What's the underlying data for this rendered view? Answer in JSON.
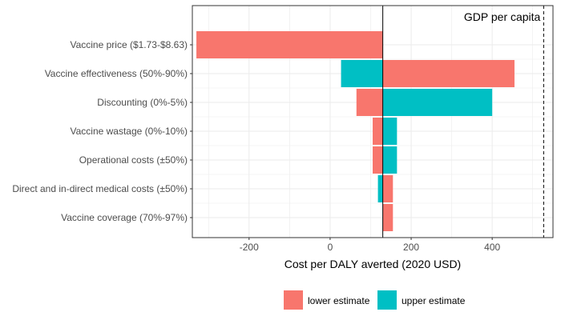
{
  "chart_data": {
    "type": "bar",
    "orientation": "horizontal",
    "xlabel": "Cost per DALY averted (2020 USD)",
    "ylabel": "",
    "xlim": [
      -340,
      550
    ],
    "x_ticks": [
      -200,
      0,
      200,
      400
    ],
    "grid": true,
    "legend_position": "bottom",
    "baseline": 130,
    "reference_line": {
      "value": 527,
      "label": "GDP per capita"
    },
    "categories": [
      "Vaccine price ($1.73-$8.63)",
      "Vaccine effectiveness (50%-90%)",
      "Discounting (0%-5%)",
      "Vaccine wastage (0%-10%)",
      "Operational costs (±50%)",
      "Direct and in-direct medical costs (±50%)",
      "Vaccine coverage (70%-97%)"
    ],
    "series": [
      {
        "name": "lower estimate",
        "color": "#F8766D",
        "values": [
          -330,
          455,
          65,
          105,
          105,
          155,
          155
        ]
      },
      {
        "name": "upper estimate",
        "color": "#00BFC4",
        "values": [
          130,
          27,
          400,
          165,
          165,
          118,
          130
        ]
      }
    ]
  }
}
